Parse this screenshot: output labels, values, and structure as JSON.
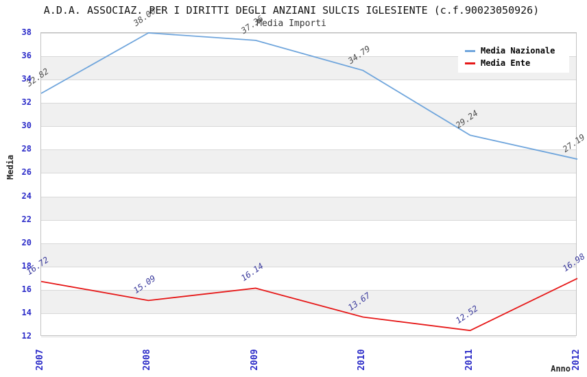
{
  "chart_data": {
    "type": "line",
    "title": "A.D.A. ASSOCIAZ. PER I DIRITTI DEGLI ANZIANI SULCIS IGLESIENTE (c.f.90023050926)",
    "subtitle": "Media Importi",
    "xlabel": "Anno",
    "ylabel": "Media",
    "categories": [
      "2007",
      "2008",
      "2009",
      "2010",
      "2011",
      "2012"
    ],
    "series": [
      {
        "name": "Media Nazionale",
        "color": "#6fa5dc",
        "values": [
          32.82,
          38.0,
          37.36,
          34.79,
          29.24,
          27.19
        ],
        "point_labels": [
          "32.82",
          "38.00",
          "37.36",
          "34.79",
          "29.24",
          "27.19"
        ],
        "label_color": "#4d4d4d"
      },
      {
        "name": "Media Ente",
        "color": "#e61717",
        "values": [
          16.72,
          15.09,
          16.14,
          13.67,
          12.52,
          16.98
        ],
        "point_labels": [
          "16.72",
          "15.09",
          "16.14",
          "13.67",
          "12.52",
          "16.98"
        ],
        "label_color": "#3a3a9c"
      }
    ],
    "ylim": [
      12,
      38
    ],
    "ytick_step": 2,
    "ytick_labels": [
      "12",
      "14",
      "16",
      "18",
      "20",
      "22",
      "24",
      "26",
      "28",
      "30",
      "32",
      "34",
      "36",
      "38"
    ],
    "grid": true,
    "band_color": "#f0f0f0",
    "axis_tick_color": "#2b2bc8",
    "legend_position": "top-right"
  }
}
